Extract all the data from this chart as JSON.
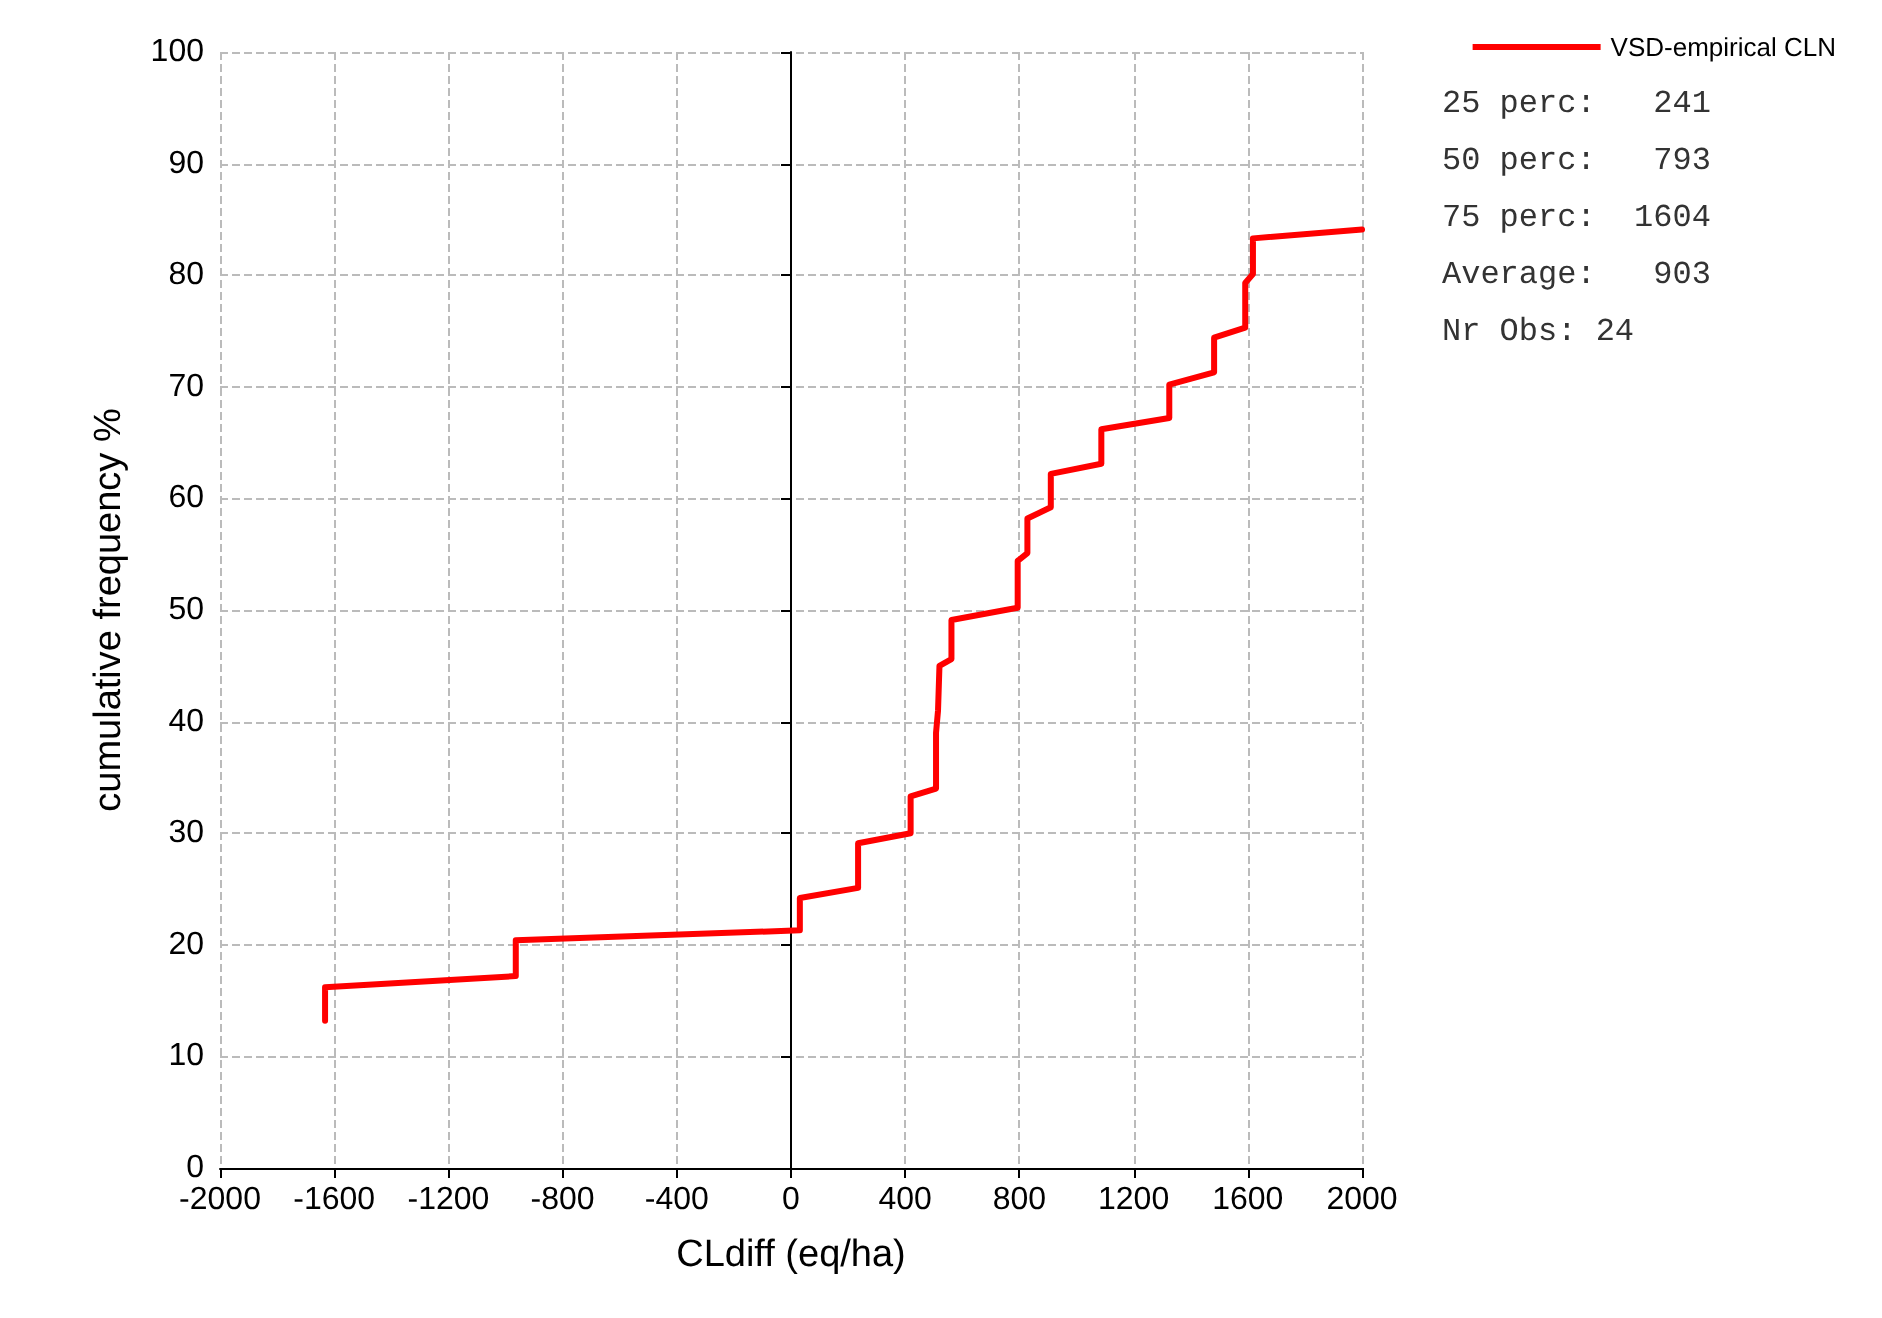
{
  "chart_data": {
    "type": "line",
    "xlabel": "CLdiff (eq/ha)",
    "ylabel": "cumulative frequency %",
    "series": [
      {
        "name": "VSD-empirical CLN",
        "color": "#ff0000",
        "x": [
          -1632,
          -1632,
          -964,
          -964,
          31,
          31,
          235,
          235,
          419,
          419,
          508,
          508,
          515,
          520,
          562,
          562,
          794,
          794,
          828,
          828,
          910,
          910,
          1087,
          1087,
          1325,
          1325,
          1482,
          1482,
          1591,
          1591,
          1618,
          1618,
          2000
        ],
        "values": [
          13.2,
          16.2,
          17.2,
          20.4,
          21.3,
          24.2,
          25.1,
          29.1,
          30.0,
          33.3,
          34.0,
          39.0,
          41.0,
          45.0,
          45.6,
          49.1,
          50.2,
          54.4,
          55.1,
          58.2,
          59.2,
          62.2,
          63.1,
          66.2,
          67.2,
          70.2,
          71.3,
          74.4,
          75.3,
          79.3,
          80.1,
          83.3,
          84.1
        ]
      }
    ],
    "xlim": [
      -2000,
      2000
    ],
    "xticks": [
      -2000,
      -1600,
      -1200,
      -800,
      -400,
      0,
      400,
      800,
      1200,
      1600,
      2000
    ],
    "ylim": [
      0,
      100
    ],
    "yticks": [
      0,
      10,
      20,
      30,
      40,
      50,
      60,
      70,
      80,
      90,
      100
    ],
    "grid": true,
    "legend": "top right",
    "marker": "none",
    "line_style": "solid",
    "annotations": [
      "25 perc:   241",
      "50 perc:   793",
      "75 perc:  1604",
      "Average:   903",
      "Nr Obs: 24"
    ]
  }
}
